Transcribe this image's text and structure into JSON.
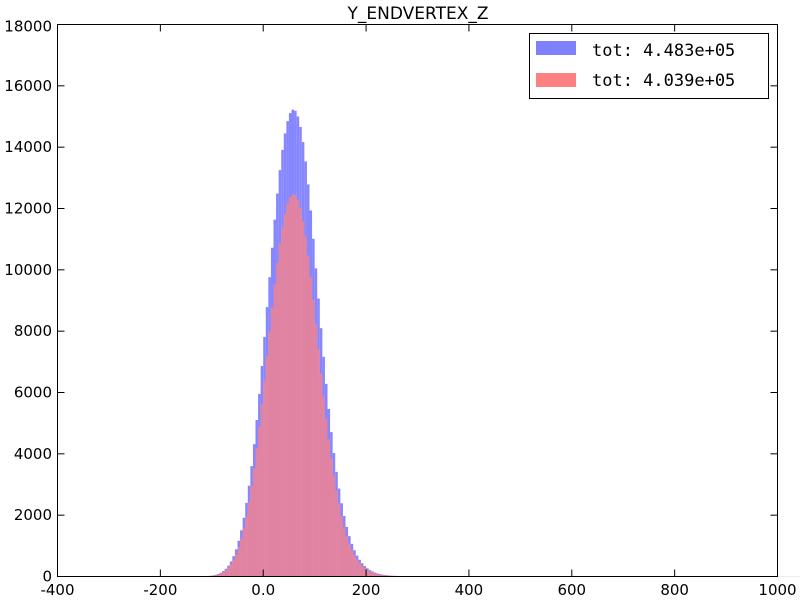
{
  "chart_data": {
    "type": "bar",
    "title": "Y_ENDVERTEX_Z",
    "xlabel": "",
    "ylabel": "",
    "xlim": [
      -400,
      1000
    ],
    "ylim": [
      0,
      18000
    ],
    "x_ticks": [
      {
        "value": -400,
        "label": "-400"
      },
      {
        "value": -200,
        "label": "-200"
      },
      {
        "value": 0,
        "label": "0.0"
      },
      {
        "value": 200,
        "label": "200"
      },
      {
        "value": 400,
        "label": "400"
      },
      {
        "value": 600,
        "label": "600"
      },
      {
        "value": 800,
        "label": "800"
      },
      {
        "value": 1000,
        "label": "1000"
      }
    ],
    "y_ticks": [
      {
        "value": 0,
        "label": "0"
      },
      {
        "value": 2000,
        "label": "2000"
      },
      {
        "value": 4000,
        "label": "4000"
      },
      {
        "value": 6000,
        "label": "6000"
      },
      {
        "value": 8000,
        "label": "8000"
      },
      {
        "value": 10000,
        "label": "10000"
      },
      {
        "value": 12000,
        "label": "12000"
      },
      {
        "value": 14000,
        "label": "14000"
      },
      {
        "value": 16000,
        "label": "16000"
      },
      {
        "value": 18000,
        "label": "18000"
      }
    ],
    "grid": false,
    "legend_position": "top-right",
    "bin_width": 5,
    "bin_start": -180,
    "series": [
      {
        "name": "tot: 4.483e+05",
        "color": "#8080ff",
        "values": [
          0,
          0,
          0,
          0,
          0,
          0,
          0,
          0,
          0,
          0,
          0,
          2,
          4,
          8,
          14,
          22,
          36,
          55,
          82,
          122,
          177,
          253,
          355,
          489,
          664,
          886,
          1165,
          1506,
          1916,
          2400,
          2960,
          3599,
          4314,
          5102,
          5955,
          6863,
          7812,
          8785,
          9762,
          10720,
          11636,
          12487,
          13252,
          13911,
          14448,
          14851,
          15111,
          15224,
          15187,
          15001,
          14659,
          14167,
          13537,
          12786,
          11937,
          11014,
          10047,
          9066,
          8098,
          7165,
          6283,
          5462,
          4709,
          4025,
          3411,
          2866,
          2387,
          1972,
          1617,
          1316,
          1064,
          856,
          684,
          545,
          432,
          341,
          268,
          210,
          164,
          128,
          100,
          78,
          61,
          48,
          38,
          30,
          24,
          20,
          17,
          14,
          12,
          11,
          10,
          9,
          8,
          8,
          7,
          7,
          7,
          6,
          6,
          6,
          6,
          6,
          5,
          5,
          5,
          5,
          5,
          5,
          5,
          5,
          5,
          5,
          4,
          4,
          4,
          4,
          4,
          4,
          4,
          4,
          4,
          4,
          4,
          4,
          4,
          4,
          4,
          4,
          4,
          4,
          4,
          4,
          4,
          4,
          4,
          4,
          4,
          4,
          4,
          4,
          4,
          4,
          4,
          4,
          4,
          4,
          4,
          4,
          4,
          4,
          4,
          4,
          4,
          4,
          4,
          4,
          4,
          4,
          4,
          4,
          4,
          4,
          4,
          4,
          4,
          4,
          4,
          4,
          4,
          4,
          4,
          4,
          4,
          4,
          4,
          4,
          4,
          4,
          4,
          4,
          4,
          4,
          4,
          4,
          4,
          4,
          4,
          4,
          4,
          4,
          4,
          4,
          4,
          4,
          4,
          4,
          4,
          4,
          4,
          4,
          4,
          4,
          4,
          4,
          4,
          4,
          4,
          4,
          4,
          4,
          4,
          4,
          4,
          4,
          4,
          4,
          4,
          4,
          4,
          4,
          4,
          4,
          4,
          4,
          4,
          4,
          4,
          4,
          4,
          4,
          4,
          4,
          4,
          4,
          4,
          4,
          4,
          4,
          4,
          4,
          4,
          4,
          4,
          4
        ]
      },
      {
        "name": "tot: 4.039e+05",
        "color": "#ff8080",
        "values": [
          0,
          0,
          0,
          0,
          0,
          0,
          0,
          0,
          0,
          0,
          0,
          2,
          4,
          7,
          12,
          19,
          30,
          46,
          69,
          101,
          146,
          208,
          292,
          402,
          546,
          728,
          956,
          1235,
          1571,
          1968,
          2428,
          2951,
          3537,
          4183,
          4881,
          5624,
          6399,
          7192,
          7991,
          8777,
          9527,
          10227,
          10851,
          11386,
          11826,
          12159,
          12371,
          12464,
          12434,
          12281,
          12003,
          11600,
          11085,
          10469,
          9774,
          9020,
          8229,
          7424,
          6631,
          5867,
          5146,
          4474,
          3857,
          3297,
          2794,
          2348,
          1956,
          1616,
          1324,
          1078,
          872,
          701,
          560,
          446,
          353,
          278,
          219,
          172,
          135,
          106,
          83,
          65,
          52,
          41,
          33,
          26,
          21,
          18,
          15,
          13,
          11,
          10,
          9,
          8,
          7,
          7,
          6,
          6,
          6,
          5,
          5,
          5,
          5,
          5,
          5,
          4,
          4,
          4,
          4,
          4,
          4,
          4,
          4,
          4,
          4,
          4,
          4,
          4,
          4,
          4,
          4,
          4,
          4,
          4,
          4,
          4,
          4,
          4,
          4,
          4,
          4,
          4,
          4,
          4,
          4,
          4,
          4,
          4,
          4,
          4,
          4,
          4,
          4,
          4,
          4,
          4,
          4,
          4,
          4,
          4,
          4,
          4,
          4,
          4,
          4,
          4,
          4,
          4,
          4,
          4,
          4,
          4,
          4,
          4,
          4,
          4,
          4,
          4,
          4,
          4,
          4,
          4,
          4,
          4,
          4,
          4,
          4,
          4,
          4,
          4,
          4,
          4,
          4,
          4,
          4,
          4,
          4,
          4,
          4,
          4,
          4,
          4,
          4,
          4,
          4,
          4,
          4,
          4,
          4,
          4,
          4,
          4,
          4,
          4,
          4,
          4,
          4,
          4,
          4,
          4,
          4,
          4,
          4,
          4,
          4,
          4,
          4,
          4,
          4,
          4,
          4,
          4,
          4,
          4,
          4,
          4,
          4,
          4,
          4,
          4,
          4,
          4,
          4,
          4,
          4,
          4,
          4,
          4,
          4,
          4,
          4,
          4,
          4,
          4,
          4,
          4,
          4,
          4
        ]
      }
    ]
  }
}
